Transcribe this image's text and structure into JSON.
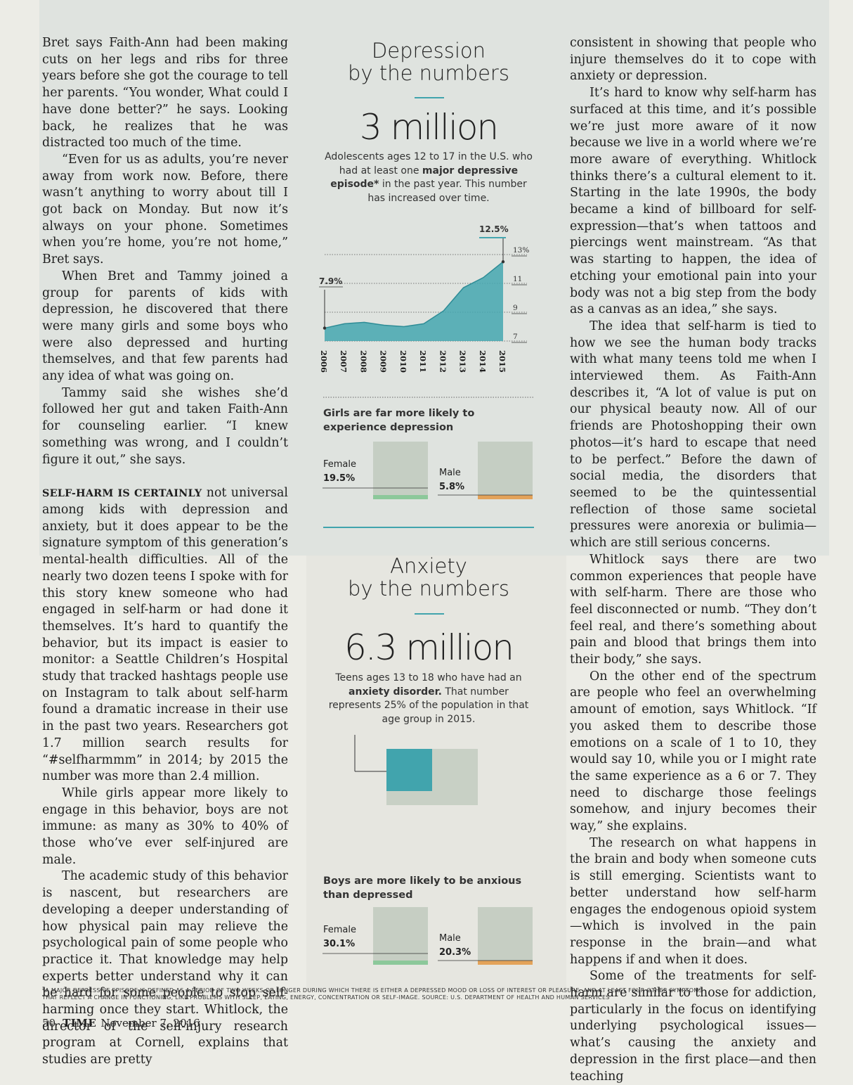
{
  "column_left": {
    "paragraphs": [
      "Bret says Faith-Ann had been making cuts on her legs and ribs for three years before she got the courage to tell her parents. “You wonder, What could I have done better?” he says. Looking back, he realizes that he was distracted too much of the time.",
      "“Even for us as adults, you’re never away from work now. Before, there wasn’t anything to worry about till I got back on Monday. But now it’s always on your phone. Sometimes when you’re home, you’re not home,” Bret says.",
      "When Bret and Tammy joined a group for parents of kids with depression, he discovered that there were many girls and some boys who were also depressed and hurting themselves, and that few parents had any idea of what was going on.",
      "Tammy said she wishes she’d followed her gut and taken Faith-Ann for counseling earlier. “I knew something was wrong, and I couldn’t figure it out,” she says."
    ],
    "section_lead": "SELF-HARM IS CERTAINLY",
    "section_lead_rest": " not universal among kids with depression and anxiety, but it does appear to be the signature symptom of this generation’s mental-health difficulties. All of the nearly two dozen teens I spoke with for this story knew someone who had engaged in self-harm or had done it themselves. It’s hard to quantify the behavior, but its impact is easier to monitor: a Seattle Children’s Hospital study that tracked hashtags people use on Instagram to talk about self-harm found a dramatic increase in their use in the past two years. Researchers got 1.7 million search results for “#selfharmmm” in 2014; by 2015 the number was more than 2.4 million.",
    "paragraphs2": [
      "While girls appear more likely to engage in this behavior, boys are not immune: as many as 30% to 40% of those who’ve ever self-injured are male.",
      "The academic study of this behavior is nascent, but researchers are developing a deeper understanding of how physical pain may relieve the psychological pain of some people who practice it. That knowledge may help experts better understand why it can be hard for some people to stop self-harming once they start. Whitlock, the director of the self-injury research program at Cornell, explains that studies are pretty"
    ]
  },
  "column_right": {
    "paragraphs": [
      "consistent in showing that people who injure themselves do it to cope with anxiety or depression.",
      "It’s hard to know why self-harm has surfaced at this time, and it’s possible we’re just more aware of it now because we live in a world where we’re more aware of everything. Whitlock thinks there’s a cultural element to it. Starting in the late 1990s, the body became a kind of billboard for self-expression—that’s when tattoos and piercings went mainstream. “As that was starting to happen, the idea of etching your emotional pain into your body was not a big step from the body as a canvas as an idea,” she says.",
      "The idea that self-harm is tied to how we see the human body tracks with what many teens told me when I interviewed them. As Faith-Ann describes it, “A lot of value is put on our physical beauty now. All of our friends are Photoshopping their own photos—it’s hard to escape that need to be perfect.” Before the dawn of social media, the disorders that seemed to be the quintessential reflection of those same societal pressures were anorexia or bulimia—which are still serious concerns.",
      "Whitlock says there are two common experiences that people have with self-harm. There are those who feel disconnected or numb. “They don’t feel real, and there’s something about pain and blood that brings them into their body,” she says.",
      "On the other end of the spectrum are people who feel an overwhelming amount of emotion, says Whitlock. “If you asked them to describe those emotions on a scale of 1 to 10, they would say 10, while you or I might rate the same experience as a 6 or 7. They need to discharge those feelings somehow, and injury becomes their way,” she explains.",
      "The research on what happens in the brain and body when someone cuts is still emerging. Scientists want to better understand how self-harm engages the endogenous opioid system—which is involved in the pain response in the brain—and what happens if and when it does.",
      "Some of the treatments for self-harm are similar to those for addiction, particularly in the focus on identifying underlying psychological issues—what’s causing the anxiety and depression in the first place—and then teaching"
    ]
  },
  "depression": {
    "title_line1": "Depression",
    "title_line2": "by the numbers",
    "big_number": "3 million",
    "desc_pre": "Adolescents ages 12 to 17 in the U.S. who had at least one ",
    "desc_bold": "major depressive episode*",
    "desc_post": " in the past year. This number has increased over time.",
    "gender_title": "Girls are far more likely to experience depression",
    "female_label": "Female",
    "female_value": "19.5%",
    "male_label": "Male",
    "male_value": "5.8%",
    "female_share": 0.195,
    "male_share": 0.058
  },
  "anxiety": {
    "title_line1": "Anxiety",
    "title_line2": "by the numbers",
    "big_number": "6.3 million",
    "desc_pre": "Teens ages 13 to 18 who have had an ",
    "desc_bold": "anxiety disorder.",
    "desc_post": " That number represents 25% of the population in that age group in 2015.",
    "gender_title": "Boys are more likely to be anxious than depressed",
    "female_label": "Female",
    "female_value": "30.1%",
    "male_label": "Male",
    "male_value": "20.3%",
    "share": 0.25,
    "female_share": 0.301,
    "male_share": 0.203
  },
  "chart_data": {
    "type": "area",
    "x": [
      "2006",
      "2007",
      "2008",
      "2009",
      "2010",
      "2011",
      "2012",
      "2013",
      "2014",
      "2015"
    ],
    "values": [
      7.9,
      8.2,
      8.3,
      8.1,
      8.0,
      8.2,
      9.1,
      10.7,
      11.4,
      12.5
    ],
    "yticks": [
      "7",
      "9",
      "11",
      "13%"
    ],
    "ylim": [
      7,
      13
    ],
    "start_label": "7.9%",
    "end_label": "12.5%",
    "color": "#45a7b0"
  },
  "colors": {
    "teal": "#41a4ad",
    "green": "#8cc89a",
    "orange": "#e3a35a",
    "square_fill": "#c2cbc0"
  },
  "footnote": {
    "line1": "*A major depressive episode is defined as a period of two weeks or longer during which there is either a depressed mood or loss of interest or pleasure, and at least four other symptoms",
    "line2": "that reflect a change in functioning, like problems with sleep, eating, energy, concentration or self-image. Source: U.S. Department of Health and Human Services"
  },
  "folio": {
    "page": "50",
    "magazine": "TIME",
    "date": "November 7, 2016"
  }
}
